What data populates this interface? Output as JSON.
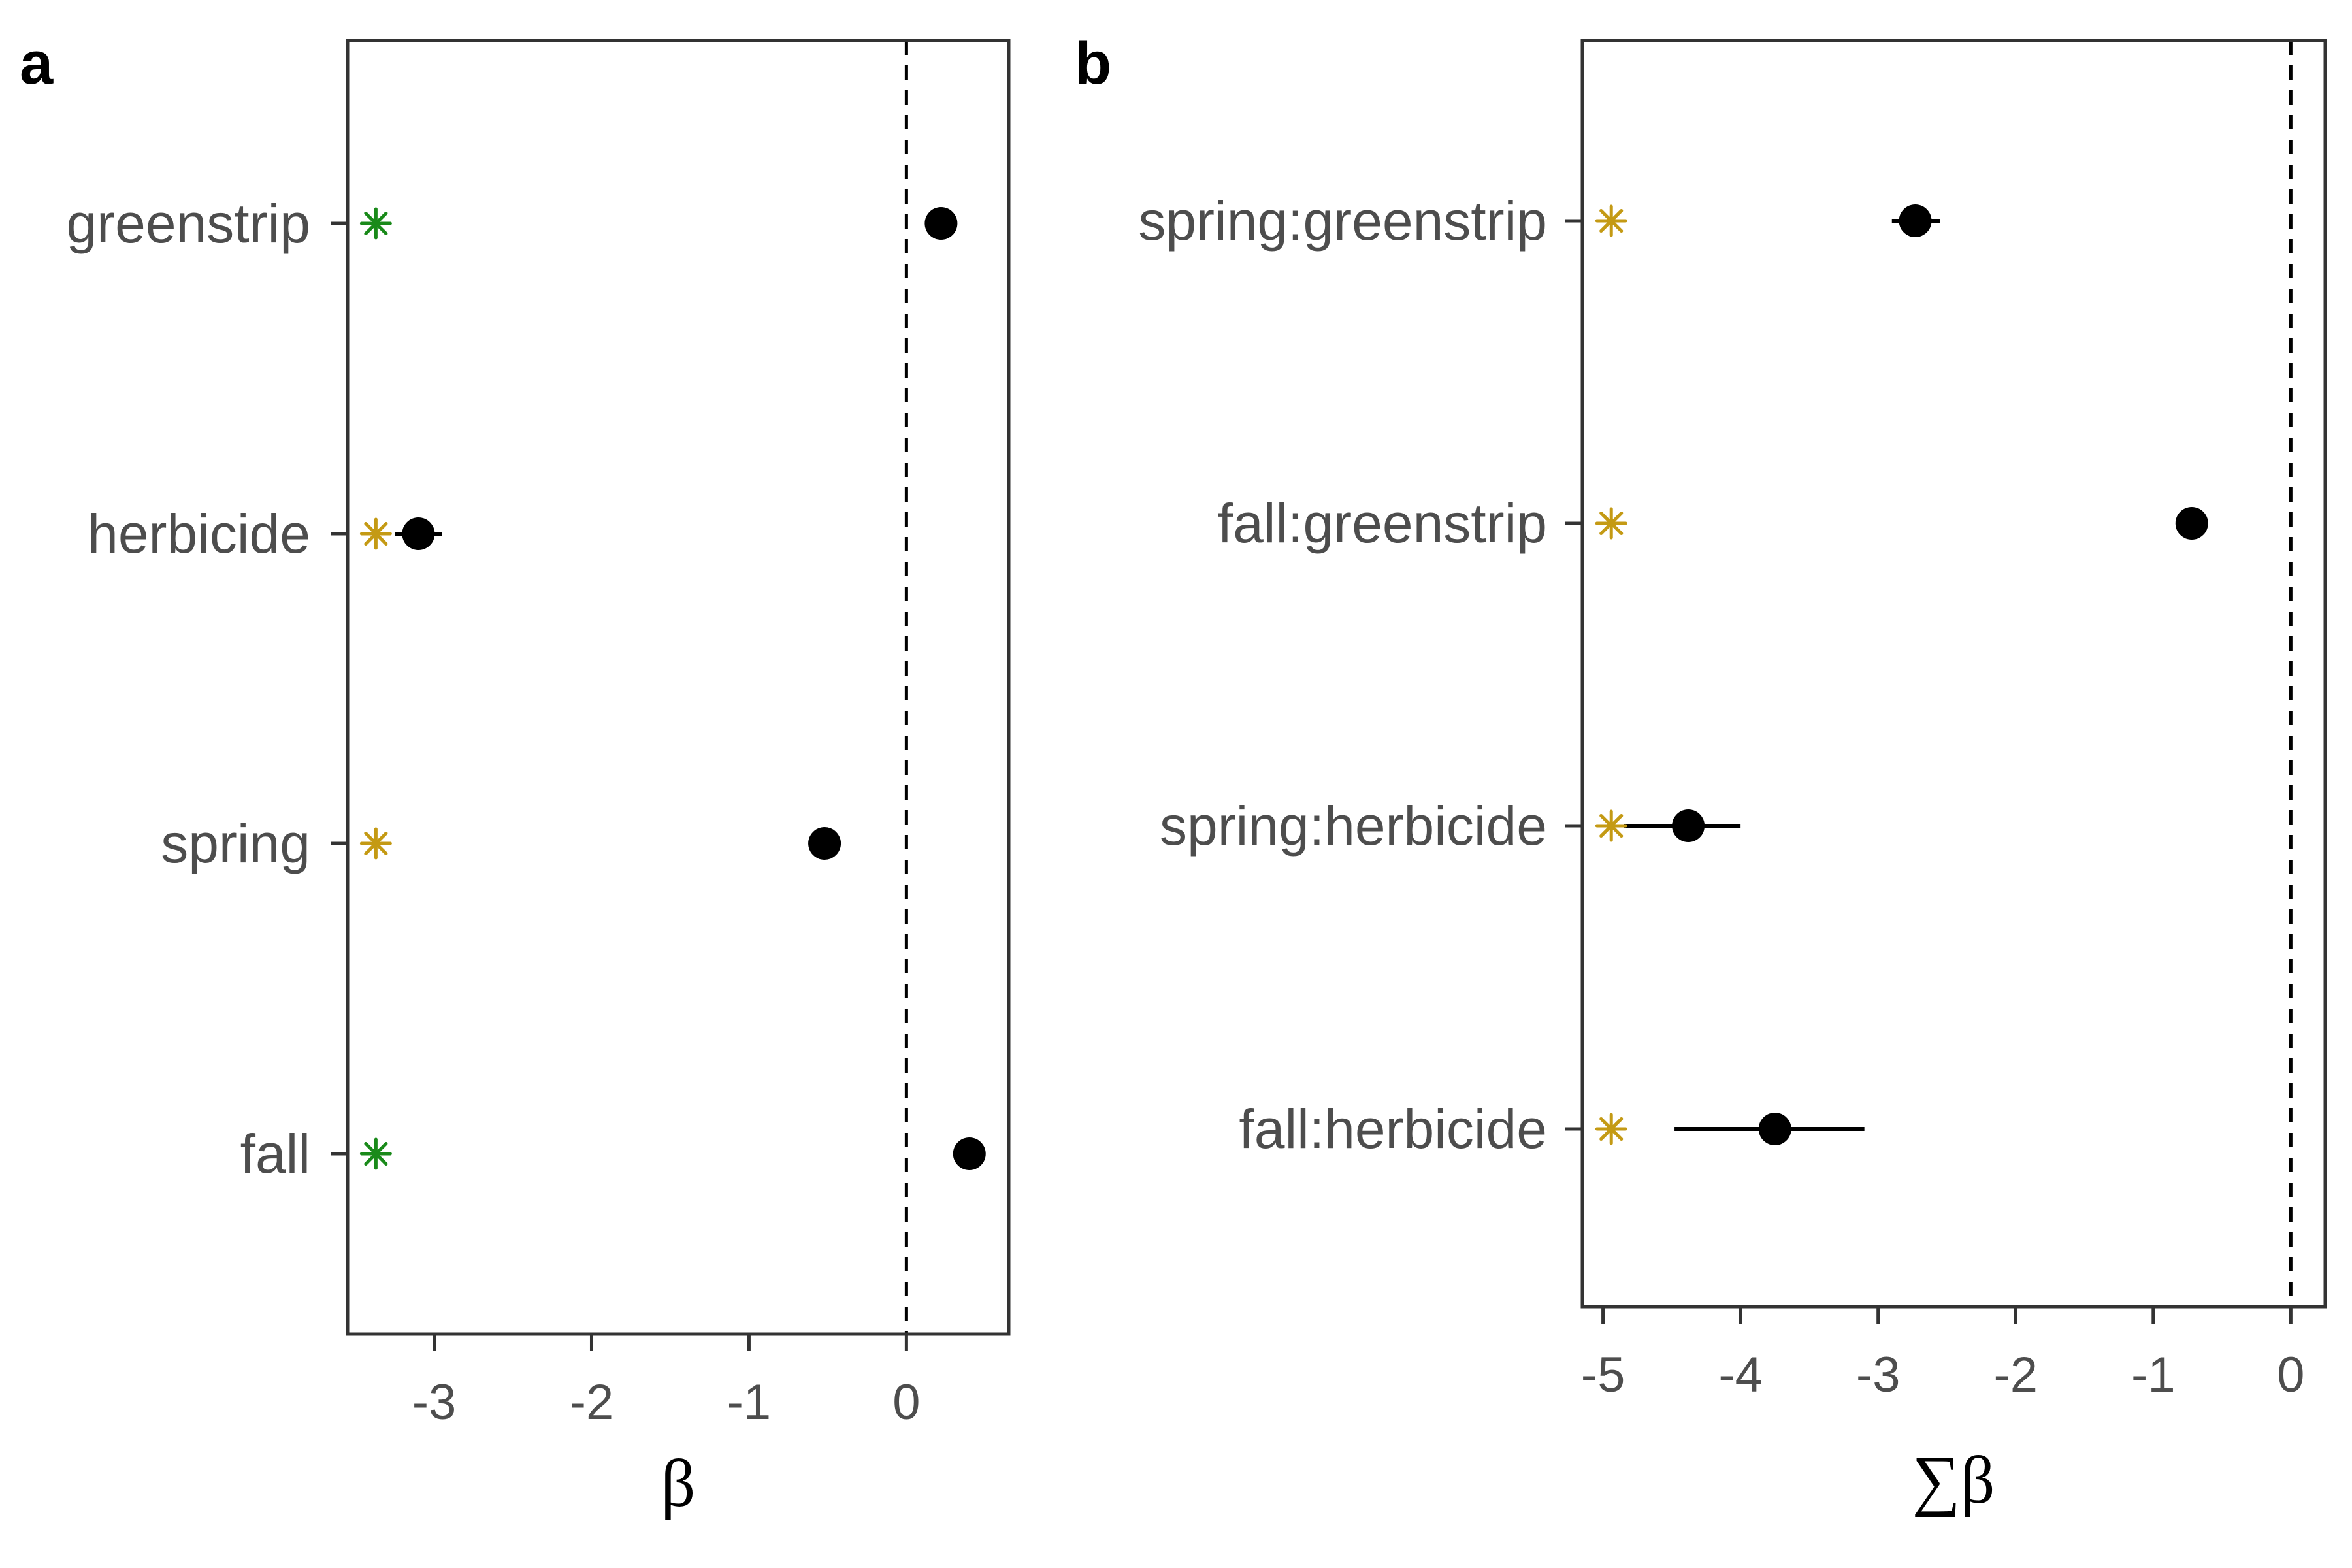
{
  "colors": {
    "green": "#1a8a1a",
    "gold": "#c49a14",
    "point": "#000000"
  },
  "chart_data": [
    {
      "type": "scatter",
      "panel_label": "a",
      "xlabel": "β",
      "ylabel": "",
      "xlim": [
        -3.55,
        0.65
      ],
      "xticks": [
        -3,
        -2,
        -1,
        0
      ],
      "xtick_labels": [
        "-3",
        "-2",
        "-1",
        "0"
      ],
      "reference_line": 0,
      "marker_x": -3.37,
      "grid": false,
      "categories": [
        "greenstrip",
        "herbicide",
        "spring",
        "fall"
      ],
      "series": [
        {
          "estimate": [
            0.22,
            -3.1,
            -0.52,
            0.4
          ],
          "lower": [
            0.18,
            -3.25,
            -0.58,
            0.36
          ],
          "upper": [
            0.26,
            -2.95,
            -0.46,
            0.44
          ]
        }
      ],
      "significance_markers": [
        {
          "symbol": "*",
          "color": "green"
        },
        {
          "symbol": "*",
          "color": "gold"
        },
        {
          "symbol": "*",
          "color": "gold"
        },
        {
          "symbol": "*",
          "color": "green"
        }
      ]
    },
    {
      "type": "scatter",
      "panel_label": "b",
      "xlabel": "∑β",
      "ylabel": "",
      "xlim": [
        -5.15,
        0.25
      ],
      "xticks": [
        -5,
        -4,
        -3,
        -2,
        -1,
        0
      ],
      "xtick_labels": [
        "-5",
        "-4",
        "-3",
        "-2",
        "-1",
        "0"
      ],
      "reference_line": 0,
      "marker_x": -4.94,
      "grid": false,
      "categories": [
        "spring:greenstrip",
        "fall:greenstrip",
        "spring:herbicide",
        "fall:herbicide"
      ],
      "series": [
        {
          "estimate": [
            -2.73,
            -0.72,
            -4.38,
            -3.75
          ],
          "lower": [
            -2.9,
            -0.76,
            -4.85,
            -4.48
          ],
          "upper": [
            -2.55,
            -0.68,
            -4.0,
            -3.1
          ]
        }
      ],
      "significance_markers": [
        {
          "symbol": "*",
          "color": "gold"
        },
        {
          "symbol": "*",
          "color": "gold"
        },
        {
          "symbol": "*",
          "color": "gold"
        },
        {
          "symbol": "*",
          "color": "gold"
        }
      ]
    }
  ]
}
